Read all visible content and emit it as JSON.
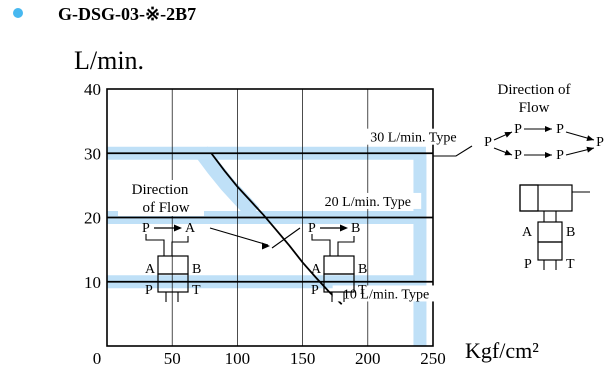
{
  "header": {
    "bullet_color": "#47b8f0",
    "model": "G-DSG-03-※-2B7"
  },
  "chart_data": {
    "type": "line",
    "ylabel": "L/min.",
    "xlabel": "Kgf/cm²",
    "xlim": [
      0,
      250
    ],
    "ylim": [
      0,
      40
    ],
    "xticks": [
      "0",
      "50",
      "100",
      "150",
      "200",
      "250"
    ],
    "yticks": [
      "10",
      "20",
      "30",
      "40"
    ],
    "grid": true,
    "band_color": "#bfe0f7",
    "series": [
      {
        "name": "30 L/min. Type",
        "x": [
          0,
          250
        ],
        "y": [
          30,
          30
        ]
      },
      {
        "name": "20 L/min. Type",
        "x": [
          0,
          250
        ],
        "y": [
          20,
          20
        ]
      },
      {
        "name": "10 L/min. Type",
        "x": [
          0,
          250
        ],
        "y": [
          10,
          10
        ]
      }
    ],
    "limit_curve": {
      "x": [
        80,
        90,
        100,
        110,
        120,
        130,
        140,
        150,
        160,
        170,
        180
      ],
      "y": [
        30,
        27.3,
        24.8,
        22.6,
        20.4,
        18.0,
        15.6,
        13.0,
        10.7,
        8.5,
        6.5
      ]
    },
    "annotations": {
      "flow_left_title": [
        "Direction",
        "of Flow"
      ],
      "flow_right_title": [
        "Direction of",
        "Flow"
      ],
      "port_p": "P",
      "port_a": "A",
      "port_b": "B",
      "port_t": "T"
    }
  }
}
